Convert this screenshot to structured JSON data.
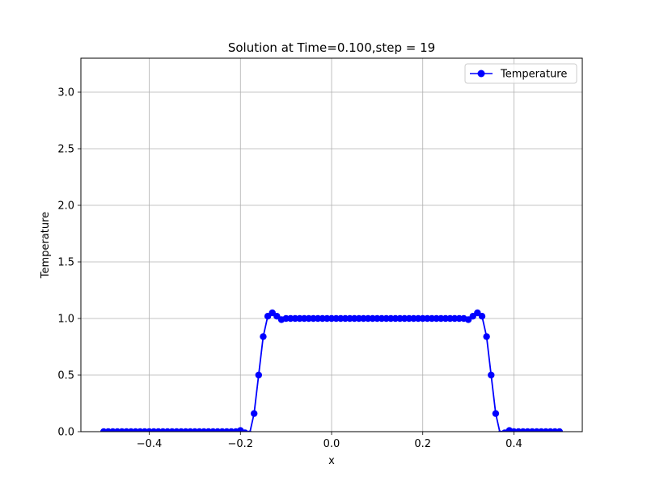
{
  "chart_data": {
    "type": "line",
    "title": "Solution at Time=0.100,step = 19",
    "xlabel": "x",
    "ylabel": "Temperature",
    "xlim": [
      -0.55,
      0.55
    ],
    "ylim": [
      0.0,
      3.3
    ],
    "xticks": [
      -0.4,
      -0.2,
      0.0,
      0.2,
      0.4
    ],
    "xtick_labels": [
      "−0.4",
      "−0.2",
      "0.0",
      "0.2",
      "0.4"
    ],
    "yticks": [
      0.0,
      0.5,
      1.0,
      1.5,
      2.0,
      2.5,
      3.0
    ],
    "ytick_labels": [
      "0.0",
      "0.5",
      "1.0",
      "1.5",
      "2.0",
      "2.5",
      "3.0"
    ],
    "grid": true,
    "legend_position": "upper right",
    "series": [
      {
        "name": "Temperature",
        "color": "#0000ff",
        "marker": "circle",
        "x": [
          -0.5,
          -0.49,
          -0.48,
          -0.47,
          -0.46,
          -0.45,
          -0.44,
          -0.43,
          -0.42,
          -0.41,
          -0.4,
          -0.39,
          -0.38,
          -0.37,
          -0.36,
          -0.35,
          -0.34,
          -0.33,
          -0.32,
          -0.31,
          -0.3,
          -0.29,
          -0.28,
          -0.27,
          -0.26,
          -0.25,
          -0.24,
          -0.23,
          -0.22,
          -0.21,
          -0.2,
          -0.19,
          -0.18,
          -0.17,
          -0.16,
          -0.15,
          -0.14,
          -0.13,
          -0.12,
          -0.11,
          -0.1,
          -0.09,
          -0.08,
          -0.07,
          -0.06,
          -0.05,
          -0.04,
          -0.03,
          -0.02,
          -0.01,
          0.0,
          0.01,
          0.02,
          0.03,
          0.04,
          0.05,
          0.06,
          0.07,
          0.08,
          0.09,
          0.1,
          0.11,
          0.12,
          0.13,
          0.14,
          0.15,
          0.16,
          0.17,
          0.18,
          0.19,
          0.2,
          0.21,
          0.22,
          0.23,
          0.24,
          0.25,
          0.26,
          0.27,
          0.28,
          0.29,
          0.3,
          0.31,
          0.32,
          0.33,
          0.34,
          0.35,
          0.36,
          0.37,
          0.38,
          0.39,
          0.4,
          0.41,
          0.42,
          0.43,
          0.44,
          0.45,
          0.46,
          0.47,
          0.48,
          0.49,
          0.5
        ],
        "y": [
          0,
          0,
          0,
          0,
          0,
          0,
          0,
          0,
          0,
          0,
          0,
          0,
          0,
          0,
          0,
          0,
          0,
          0,
          0,
          0,
          0,
          0,
          0,
          0,
          0,
          0,
          0,
          0,
          0,
          0,
          0.01,
          -0.01,
          -0.02,
          0.16,
          0.5,
          0.84,
          1.02,
          1.05,
          1.02,
          0.99,
          1.0,
          1.0,
          1.0,
          1.0,
          1.0,
          1.0,
          1.0,
          1.0,
          1.0,
          1.0,
          1.0,
          1.0,
          1.0,
          1.0,
          1.0,
          1.0,
          1.0,
          1.0,
          1.0,
          1.0,
          1.0,
          1.0,
          1.0,
          1.0,
          1.0,
          1.0,
          1.0,
          1.0,
          1.0,
          1.0,
          1.0,
          1.0,
          1.0,
          1.0,
          1.0,
          1.0,
          1.0,
          1.0,
          1.0,
          1.0,
          0.99,
          1.02,
          1.05,
          1.02,
          0.84,
          0.5,
          0.16,
          -0.02,
          -0.01,
          0.01,
          0,
          0,
          0,
          0,
          0,
          0,
          0,
          0,
          0,
          0,
          0
        ]
      }
    ]
  }
}
